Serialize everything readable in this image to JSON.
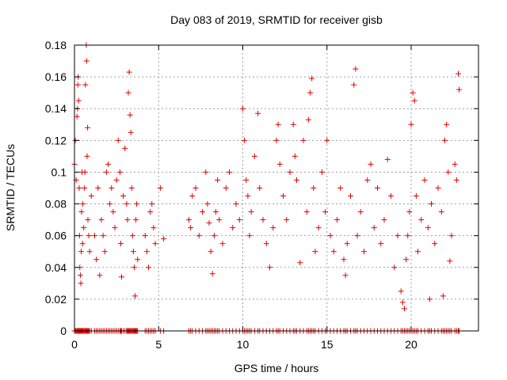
{
  "chart_data": {
    "type": "scatter",
    "title": "Day 083 of 2019, SRMTID for receiver gisb",
    "xlabel": "GPS time / hours",
    "ylabel": "SRMTID / TECUs",
    "xlim": [
      0,
      24
    ],
    "ylim": [
      0,
      0.18
    ],
    "xticks": [
      0,
      5,
      10,
      15,
      20
    ],
    "xtick_labels": [
      "0",
      "5",
      "10",
      "15",
      "20"
    ],
    "yticks": [
      0,
      0.02,
      0.04,
      0.06,
      0.08,
      0.1,
      0.12,
      0.14,
      0.16,
      0.18
    ],
    "ytick_labels": [
      "0",
      "0.02",
      "0.04",
      "0.06",
      "0.08",
      "0.1",
      "0.12",
      "0.14",
      "0.16",
      "0.18"
    ],
    "grid": true,
    "marker": "+",
    "series": [
      {
        "name": "SRMTID",
        "color": "#e00000",
        "points": [
          [
            0.0,
            0.105
          ],
          [
            0.05,
            0.12
          ],
          [
            0.1,
            0.095
          ],
          [
            0.15,
            0.135
          ],
          [
            0.18,
            0.14
          ],
          [
            0.2,
            0.155
          ],
          [
            0.22,
            0.16
          ],
          [
            0.25,
            0.145
          ],
          [
            0.28,
            0.09
          ],
          [
            0.3,
            0.06
          ],
          [
            0.32,
            0.04
          ],
          [
            0.35,
            0.035
          ],
          [
            0.38,
            0.03
          ],
          [
            0.4,
            0.05
          ],
          [
            0.42,
            0.075
          ],
          [
            0.45,
            0.1
          ],
          [
            0.48,
            0.055
          ],
          [
            0.5,
            0.08
          ],
          [
            0.55,
            0.065
          ],
          [
            0.6,
            0.09
          ],
          [
            0.62,
            0.1
          ],
          [
            0.65,
            0.155
          ],
          [
            0.7,
            0.18
          ],
          [
            0.72,
            0.17
          ],
          [
            0.75,
            0.11
          ],
          [
            0.78,
            0.128
          ],
          [
            0.8,
            0.07
          ],
          [
            0.85,
            0.06
          ],
          [
            0.9,
            0.05
          ],
          [
            1.0,
            0.085
          ],
          [
            1.2,
            0.06
          ],
          [
            1.3,
            0.045
          ],
          [
            1.4,
            0.09
          ],
          [
            1.5,
            0.035
          ],
          [
            1.6,
            0.07
          ],
          [
            1.7,
            0.06
          ],
          [
            1.8,
            0.05
          ],
          [
            1.9,
            0.1
          ],
          [
            2.0,
            0.105
          ],
          [
            2.1,
            0.08
          ],
          [
            2.2,
            0.09
          ],
          [
            2.3,
            0.075
          ],
          [
            2.4,
            0.065
          ],
          [
            2.5,
            0.095
          ],
          [
            2.6,
            0.12
          ],
          [
            2.7,
            0.1
          ],
          [
            2.75,
            0.055
          ],
          [
            2.8,
            0.034
          ],
          [
            2.9,
            0.085
          ],
          [
            3.0,
            0.115
          ],
          [
            3.1,
            0.08
          ],
          [
            3.15,
            0.07
          ],
          [
            3.2,
            0.15
          ],
          [
            3.25,
            0.163
          ],
          [
            3.3,
            0.136
          ],
          [
            3.35,
            0.125
          ],
          [
            3.4,
            0.09
          ],
          [
            3.45,
            0.06
          ],
          [
            3.5,
            0.05
          ],
          [
            3.55,
            0.04
          ],
          [
            3.6,
            0.022
          ],
          [
            3.65,
            0.07
          ],
          [
            3.7,
            0.08
          ],
          [
            3.75,
            0.045
          ],
          [
            4.2,
            0.06
          ],
          [
            4.3,
            0.05
          ],
          [
            4.4,
            0.04
          ],
          [
            4.5,
            0.075
          ],
          [
            4.6,
            0.08
          ],
          [
            4.7,
            0.065
          ],
          [
            4.8,
            0.055
          ],
          [
            5.1,
            0.09
          ],
          [
            5.3,
            0.058
          ],
          [
            6.8,
            0.07
          ],
          [
            6.9,
            0.065
          ],
          [
            7.0,
            0.085
          ],
          [
            7.2,
            0.09
          ],
          [
            7.4,
            0.06
          ],
          [
            7.6,
            0.075
          ],
          [
            7.8,
            0.1
          ],
          [
            7.9,
            0.08
          ],
          [
            8.0,
            0.068
          ],
          [
            8.1,
            0.05
          ],
          [
            8.2,
            0.036
          ],
          [
            8.3,
            0.06
          ],
          [
            8.4,
            0.075
          ],
          [
            8.5,
            0.095
          ],
          [
            8.6,
            0.07
          ],
          [
            8.8,
            0.055
          ],
          [
            9.0,
            0.09
          ],
          [
            9.2,
            0.1
          ],
          [
            9.4,
            0.065
          ],
          [
            9.6,
            0.08
          ],
          [
            9.8,
            0.07
          ],
          [
            10.0,
            0.14
          ],
          [
            10.1,
            0.12
          ],
          [
            10.2,
            0.095
          ],
          [
            10.3,
            0.085
          ],
          [
            10.4,
            0.06
          ],
          [
            10.5,
            0.075
          ],
          [
            10.7,
            0.11
          ],
          [
            10.9,
            0.137
          ],
          [
            11.0,
            0.09
          ],
          [
            11.2,
            0.07
          ],
          [
            11.4,
            0.055
          ],
          [
            11.6,
            0.04
          ],
          [
            11.8,
            0.065
          ],
          [
            12.0,
            0.12
          ],
          [
            12.1,
            0.13
          ],
          [
            12.2,
            0.105
          ],
          [
            12.4,
            0.085
          ],
          [
            12.6,
            0.07
          ],
          [
            12.8,
            0.1
          ],
          [
            13.0,
            0.13
          ],
          [
            13.1,
            0.11
          ],
          [
            13.2,
            0.095
          ],
          [
            13.4,
            0.043
          ],
          [
            13.6,
            0.12
          ],
          [
            13.8,
            0.075
          ],
          [
            13.9,
            0.133
          ],
          [
            14.0,
            0.15
          ],
          [
            14.1,
            0.159
          ],
          [
            14.2,
            0.09
          ],
          [
            14.3,
            0.05
          ],
          [
            14.5,
            0.065
          ],
          [
            14.7,
            0.1
          ],
          [
            14.9,
            0.075
          ],
          [
            15.0,
            0.12
          ],
          [
            15.2,
            0.06
          ],
          [
            15.4,
            0.05
          ],
          [
            15.6,
            0.07
          ],
          [
            15.8,
            0.09
          ],
          [
            16.0,
            0.045
          ],
          [
            16.1,
            0.035
          ],
          [
            16.2,
            0.055
          ],
          [
            16.4,
            0.085
          ],
          [
            16.6,
            0.155
          ],
          [
            16.7,
            0.165
          ],
          [
            16.8,
            0.06
          ],
          [
            17.0,
            0.075
          ],
          [
            17.2,
            0.05
          ],
          [
            17.4,
            0.095
          ],
          [
            17.6,
            0.105
          ],
          [
            17.8,
            0.065
          ],
          [
            18.0,
            0.09
          ],
          [
            18.2,
            0.055
          ],
          [
            18.4,
            0.07
          ],
          [
            18.6,
            0.108
          ],
          [
            18.8,
            0.085
          ],
          [
            19.0,
            0.04
          ],
          [
            19.2,
            0.06
          ],
          [
            19.4,
            0.025
          ],
          [
            19.5,
            0.018
          ],
          [
            19.6,
            0.014
          ],
          [
            19.7,
            0.045
          ],
          [
            19.8,
            0.06
          ],
          [
            19.9,
            0.075
          ],
          [
            20.0,
            0.13
          ],
          [
            20.1,
            0.15
          ],
          [
            20.2,
            0.145
          ],
          [
            20.3,
            0.085
          ],
          [
            20.4,
            0.05
          ],
          [
            20.6,
            0.07
          ],
          [
            20.8,
            0.095
          ],
          [
            21.0,
            0.065
          ],
          [
            21.1,
            0.02
          ],
          [
            21.2,
            0.08
          ],
          [
            21.4,
            0.055
          ],
          [
            21.6,
            0.09
          ],
          [
            21.8,
            0.075
          ],
          [
            21.9,
            0.022
          ],
          [
            22.0,
            0.12
          ],
          [
            22.1,
            0.13
          ],
          [
            22.2,
            0.1
          ],
          [
            22.3,
            0.044
          ],
          [
            22.4,
            0.06
          ],
          [
            22.6,
            0.105
          ],
          [
            22.8,
            0.162
          ],
          [
            22.85,
            0.152
          ],
          [
            22.7,
            0.095
          ]
        ]
      }
    ]
  }
}
